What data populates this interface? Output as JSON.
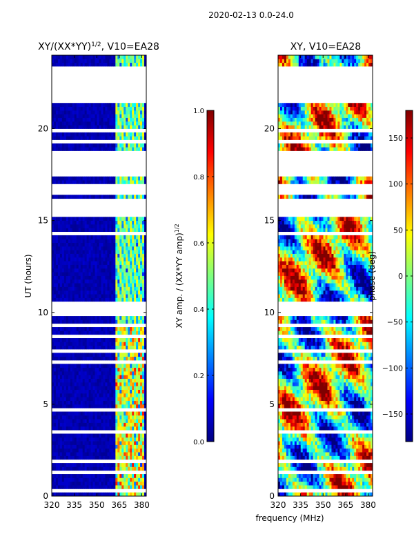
{
  "suptitle": "2020-02-13 0.0-24.0",
  "colors": {
    "jet": [
      "#00007f",
      "#0000ff",
      "#007fff",
      "#00ffff",
      "#7fff7f",
      "#ffff00",
      "#ff7f00",
      "#ff0000",
      "#7f0000"
    ],
    "background": "#ffffff",
    "axes": "#000000"
  },
  "chart_data": [
    {
      "type": "heatmap",
      "title_prefix": "XY/(XX*YY)",
      "title_sup": "1/2",
      "title_suffix": ", V10=EA28",
      "xlabel": "",
      "ylabel": "UT (hours)",
      "xlim": [
        320,
        383
      ],
      "ylim": [
        0,
        24
      ],
      "xticks": [
        320,
        335,
        350,
        365,
        380
      ],
      "yticks": [
        0,
        5,
        10,
        15,
        20
      ],
      "pattern": "amplitude",
      "colorbar": {
        "label": "XY amp. / (XX*YY amp)",
        "label_sup": "1/2",
        "range": [
          0.0,
          1.0
        ],
        "ticks": [
          "0.0",
          "0.2",
          "0.4",
          "0.6",
          "0.8",
          "1.0"
        ],
        "tick_values": [
          0.0,
          0.2,
          0.4,
          0.6,
          0.8,
          1.0
        ]
      },
      "blank_time_ranges": [
        [
          0.3,
          0.4
        ],
        [
          1.3,
          1.5
        ],
        [
          1.9,
          2.1
        ],
        [
          3.5,
          3.7
        ],
        [
          4.7,
          4.8
        ],
        [
          5.8,
          5.9
        ],
        [
          7.3,
          7.4
        ],
        [
          7.9,
          8.1
        ],
        [
          8.7,
          8.8
        ],
        [
          9.3,
          9.4
        ],
        [
          9.8,
          10.6
        ],
        [
          12.2,
          12.3
        ],
        [
          13.0,
          13.1
        ],
        [
          13.6,
          13.7
        ],
        [
          14.0,
          14.1
        ],
        [
          14.3,
          14.5
        ],
        [
          15.3,
          15.6
        ],
        [
          15.7,
          16.2
        ],
        [
          16.4,
          16.8
        ],
        [
          16.9,
          17.1
        ],
        [
          17.2,
          17.3
        ],
        [
          17.5,
          18.8
        ],
        [
          19.0,
          19.1
        ],
        [
          19.3,
          19.5
        ],
        [
          19.8,
          20.0
        ],
        [
          20.4,
          20.5
        ],
        [
          21.0,
          21.1
        ],
        [
          21.4,
          21.6
        ],
        [
          21.7,
          23.5
        ]
      ],
      "bright_band_MHz": [
        362,
        382
      ]
    },
    {
      "type": "heatmap",
      "title": "XY, V10=EA28",
      "xlabel": "frequency (MHz)",
      "ylabel": "",
      "xlim": [
        320,
        383
      ],
      "ylim": [
        0,
        24
      ],
      "xticks": [
        320,
        335,
        350,
        365,
        380
      ],
      "yticks": [
        0,
        5,
        10,
        15,
        20
      ],
      "pattern": "phase",
      "colorbar": {
        "label": "phase (deg)",
        "range": [
          -180,
          180
        ],
        "ticks": [
          "150",
          "100",
          "50",
          "0",
          "−50",
          "−100",
          "−150"
        ],
        "tick_values": [
          150,
          100,
          50,
          0,
          -50,
          -100,
          -150
        ]
      },
      "blank_time_ranges": [
        [
          0.3,
          0.4
        ],
        [
          1.3,
          1.5
        ],
        [
          1.9,
          2.1
        ],
        [
          3.5,
          3.7
        ],
        [
          4.7,
          4.8
        ],
        [
          5.8,
          5.9
        ],
        [
          7.3,
          7.4
        ],
        [
          7.9,
          8.1
        ],
        [
          8.7,
          8.8
        ],
        [
          9.3,
          9.4
        ],
        [
          9.8,
          10.6
        ],
        [
          12.2,
          12.3
        ],
        [
          13.0,
          13.1
        ],
        [
          13.6,
          13.7
        ],
        [
          14.0,
          14.1
        ],
        [
          14.3,
          14.5
        ],
        [
          15.3,
          15.6
        ],
        [
          15.7,
          16.2
        ],
        [
          16.4,
          16.8
        ],
        [
          16.9,
          17.1
        ],
        [
          17.2,
          17.3
        ],
        [
          17.5,
          18.8
        ],
        [
          19.0,
          19.1
        ],
        [
          19.3,
          19.5
        ],
        [
          19.8,
          20.0
        ],
        [
          20.4,
          20.5
        ],
        [
          21.0,
          21.1
        ],
        [
          21.4,
          21.6
        ],
        [
          21.7,
          23.5
        ]
      ]
    }
  ]
}
